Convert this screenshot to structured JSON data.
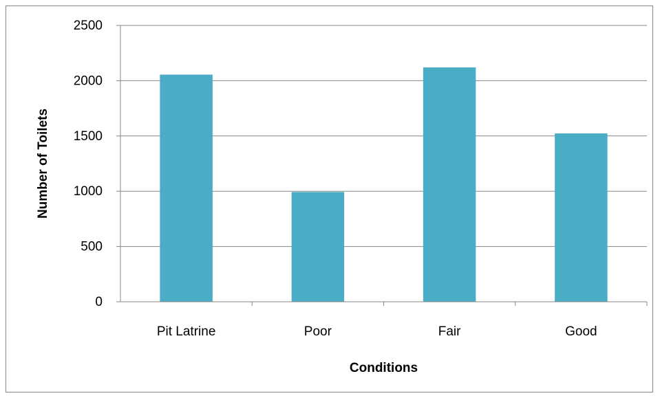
{
  "chart_data": {
    "type": "bar",
    "title": "",
    "xlabel": "Conditions",
    "ylabel": "Number of Toilets",
    "categories": [
      "Pit Latrine",
      "Poor",
      "Fair",
      "Good"
    ],
    "values": [
      2055,
      993,
      2120,
      1523
    ],
    "ylim": [
      0,
      2500
    ],
    "yticks": [
      0,
      500,
      1000,
      1500,
      2000,
      2500
    ],
    "grid": true,
    "legend": "none",
    "bar_color": "#4BACC6"
  }
}
